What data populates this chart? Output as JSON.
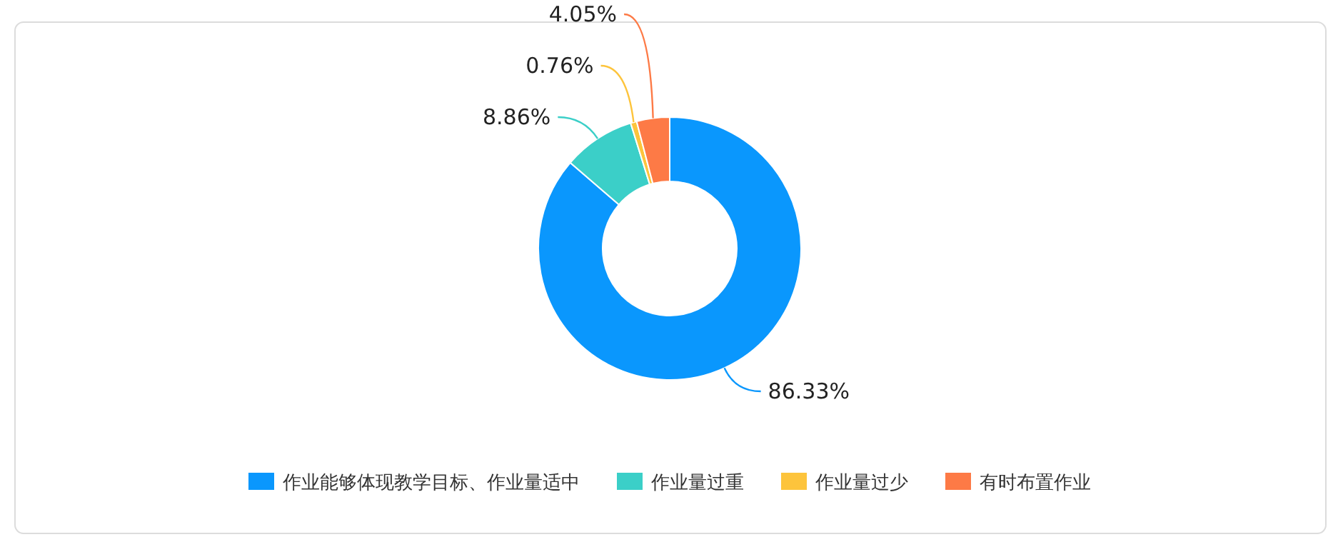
{
  "chart_data": {
    "type": "donut",
    "categories": [
      "作业能够体现教学目标、作业量适中",
      "作业量过重",
      "作业量过少",
      "有时布置作业"
    ],
    "values": [
      86.33,
      8.86,
      0.76,
      4.05
    ],
    "value_labels": [
      "86.33%",
      "8.86%",
      "0.76%",
      "4.05%"
    ],
    "colors": [
      "#0a97fd",
      "#3bcfc8",
      "#fdc43c",
      "#fd7a46"
    ],
    "legend": "bottom"
  }
}
